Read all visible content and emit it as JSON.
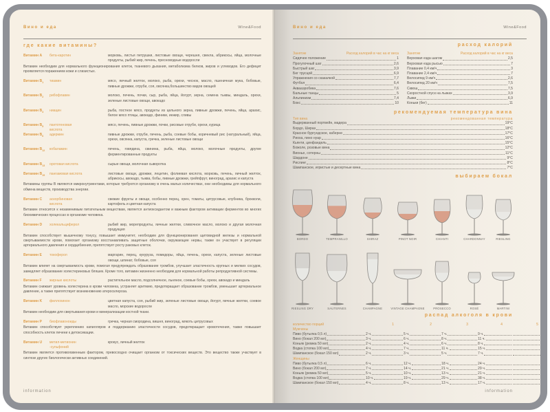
{
  "header": {
    "title_ru": "Вино и еда",
    "title_en": "Wine&Food"
  },
  "footer": {
    "left": "information",
    "right": "information"
  },
  "vitamins": {
    "title": "где какие витамины?",
    "items": [
      {
        "name": "Витамин",
        "letter": "A",
        "sub": "",
        "compound": "бета-каротин",
        "foods": "морковь, листья петрушки, листовые овощи, черешня, свекла, абрикосы, яйца, молочные продукты, рыбий жир, печень, пресноводные водоросли",
        "desc": "Витамин необходим для нормального функционирования клеток, тканевого дыхания, метаболизма белков, жиров и углеводов. Его дефицит проявляется поражением кожи и слизистых."
      },
      {
        "name": "Витамин",
        "letter": "B",
        "sub": "1",
        "compound": "тиамин",
        "foods": "мясо, яичный желток, молоко, рыба, орехи, чеснок, масло, пшеничная мука, бобовые, пивные дрожжи, отруби, соя, овсянка,большинство видов овощей",
        "desc": ""
      },
      {
        "name": "Витамин",
        "letter": "B",
        "sub": "2",
        "compound": "рибофлавин",
        "foods": "молоко, печень, почки, сыр, рыба, яйца, йогурт, зерна, семена тыквы, миндаль, орехи, зеленые листовые овощи, авокадо",
        "desc": ""
      },
      {
        "name": "Витамин",
        "letter": "B",
        "sub": "3",
        "compound": "ниацин",
        "foods": "рыба, постное мясо, продукты из цельного зерна, пивные дрожжи, печень, яйца, арахис, белое мясо птицы, авокадо, финики, инжир, сливы",
        "desc": ""
      },
      {
        "name": "Витамин",
        "letter": "B",
        "sub": "5",
        "compound": "пантотеновая кислота",
        "foods": "мясо, печень, пивные дрожжи, почки, рисовые отруби, орехи, курица",
        "desc": ""
      },
      {
        "name": "Витамин",
        "letter": "B",
        "sub": "6",
        "compound": "адермин",
        "foods": "пивные дрожжи, отруби, печень, рыба, соевые бобы, коричневый рис (натуральный), яйца, орехи, овсянка, капуста, гречка, зеленые листовые овощи",
        "desc": ""
      },
      {
        "name": "Витамин",
        "letter": "B",
        "sub": "12",
        "compound": "кобаламин",
        "foods": "печень, говядина, свинина, рыба, яйца, молоко, молочные продукты, другие ферментированные продукты",
        "desc": ""
      },
      {
        "name": "Витамин",
        "letter": "B",
        "sub": "13",
        "compound": "оротовая кислота",
        "foods": "сырые овощи, молочная сыворотка",
        "desc": ""
      },
      {
        "name": "Витамин",
        "letter": "B",
        "sub": "15",
        "compound": "пангамовая кислота",
        "foods": "листовые овощи, дрожжи, лецитин, фолиевая кислота, морковь, печень, яичный желток, абрикосы, авокадо, тыква, бобы, пивные дрожжи, грейпфрут, виноград, арахис и капуста",
        "desc": "Витамины группы B являются микронутриентами, которые требуются организму в очень малых количествах, они необходимы для нормального обмена веществ, производства энергии."
      },
      {
        "name": "Витамин",
        "letter": "C",
        "sub": "",
        "compound": "аскорбиновая кислота",
        "foods": "свежие фрукты и овощи, особенно перец, хрен, томаты, цитрусовые, клубника, брокколи, картофель и цветная капуста",
        "desc": "Витамин относится к незаменимым питательным веществам, является антиоксидантом и важным фактором активации ферментов во многих биохимических процессах в организме человека."
      },
      {
        "name": "Витамин",
        "letter": "D",
        "sub": "",
        "compound": "холекальциферол",
        "foods": "рыбий жир, морепродукты, яичные желтки, сливочное масло, молоко и другая молочная продукция",
        "desc": "Витамин способствует мышечному тонусу, повышает иммунитет, необходим для функционирования щитовидной железы и нормальной свертываемости крови, помогает организму восстанавливать защитные оболочки, окружающие нервы, также он участвует в регуляции артериального давления и сердцебиения, препятствует росту раковых клеток."
      },
      {
        "name": "Витамин",
        "letter": "E",
        "sub": "",
        "compound": "токоферол",
        "foods": "маргарин, перец, кукуруза, помидоры, яйца, печень, орехи, капуста, зеленые листовые овощи, шпинат, бобовые, соя",
        "desc": "Витамин влияет на свертываемость крови, помогая предупреждать образование тромбов, улучшает эластичность крупных и мелких сосудов, замедляет образование холестериновых бляшек. Кроме того, витамин жизненно необходим для нормальной работы репродуктивной системы."
      },
      {
        "name": "Витамин",
        "letter": "F",
        "sub": "",
        "compound": "жирные кислоты",
        "foods": "растительное масло, подсолнечное, льняное, соевые бобы, орехи, авокадо и миндаль",
        "desc": "Витамин снижает уровень холестерина в крови человека, устраняет аритмию, предотвращает образование тромбов, уменьшает артериальное давление, а также препятствует возникновению атеросклероза."
      },
      {
        "name": "Витамин",
        "letter": "K",
        "sub": "",
        "compound": "филлохинон",
        "foods": "цветная капуста, соя, рыбий жир, зеленые листовые овощи, йогурт, яичные желтки, соевое масло, морские водоросли",
        "desc": "Витамин необходим для свертывания крови и минерализации костной ткани."
      },
      {
        "name": "Витамин",
        "letter": "P",
        "sub": "",
        "compound": "биофлавоноиды",
        "foods": "гречка, черная смородина, вишня, виноград, мякоть цитрусовых",
        "desc": "Витамин способствует укреплению капилляров и поддержанию эластичности сосудов, предотвращает кровотечения, также повышает способность клеток печени к детоксикации."
      },
      {
        "name": "Витамин",
        "letter": "U",
        "sub": "",
        "compound": "метил-метионин -сульфоний",
        "foods": "крокус, яичный желток",
        "desc": "Витамин является противоязвенным фактором, превосходно очищает организм от токсических веществ. Это вещество также участвует в синтезе других биологически активных соединений."
      }
    ]
  },
  "calories": {
    "title": "расход калорий",
    "col_activity": "Занятие",
    "col_value": "Расход калорий в час на кг веса",
    "left": [
      [
        "Сидячее положение",
        "1"
      ],
      [
        "Прогулочный шаг",
        "2,6"
      ],
      [
        "Быстрый шаг",
        "3,9"
      ],
      [
        "Бег трусцой",
        "6,9"
      ],
      [
        "Упражнения со скакалкой",
        "7,7"
      ],
      [
        "Футбол",
        "6,4"
      ],
      [
        "Аквааэробика",
        "7,6"
      ],
      [
        "Бальные танцы",
        "5"
      ],
      [
        "Альпинизм",
        "7,4"
      ],
      [
        "Бокс",
        "10"
      ]
    ],
    "right": [
      [
        "Верховая езда шагом",
        "2,5"
      ],
      [
        "Верховая езда рысью",
        "7"
      ],
      [
        "Плавание 0,4 км/ч",
        "3"
      ],
      [
        "Плавание 2,4 км/ч",
        "7"
      ],
      [
        "Велосипед 9 км/ч",
        "2,6"
      ],
      [
        "Велосипед 20 км/ч",
        "7,5"
      ],
      [
        "Сквош",
        "7,5"
      ],
      [
        "Скоростной спуск на лыжах",
        "3,9"
      ],
      [
        "Лыжи",
        "6,9"
      ],
      [
        "Коньки (бег)",
        "11"
      ]
    ]
  },
  "temperature": {
    "title": "рекомендуемая температура вина",
    "col_type": "Тип вина",
    "col_temp": "рекомендованная температура",
    "rows": [
      [
        "Выдержанный портвейн, мадера",
        "19°C"
      ],
      [
        "Бордо, Шираз",
        "18°C"
      ],
      [
        "Красное бургундское, каберне",
        "17°C"
      ],
      [
        "Риоха, пино нуар",
        "16°C"
      ],
      [
        "Кьянти, цинфандель",
        "15°C"
      ],
      [
        "Божоле, розовые вина",
        "12°C"
      ],
      [
        "Вионье, сотерны",
        "11°C"
      ],
      [
        "Шардоне",
        "9°C"
      ],
      [
        "Рислинг",
        "8°C"
      ],
      [
        "Шампанское, игристые и десертные вина",
        "7°C"
      ]
    ]
  },
  "glasses": {
    "title": "выбираем бокал",
    "red_wine_color": "#d9a08a",
    "row1": [
      {
        "label": "BORDO",
        "wine": "red"
      },
      {
        "label": "TEMPRANILLO",
        "wine": "red"
      },
      {
        "label": "SHIRAZ",
        "wine": "red"
      },
      {
        "label": "PINOT NOIR",
        "wine": "red"
      },
      {
        "label": "CHIANTI",
        "wine": "red"
      },
      {
        "label": "CHARDONNAY",
        "wine": "white"
      },
      {
        "label": "RIESLING",
        "wine": "white"
      }
    ],
    "row2": [
      {
        "label": "RIESLING DRY",
        "wine": "white"
      },
      {
        "label": "SAUTERNES",
        "wine": "white"
      },
      {
        "label": "CHAMPAGNE",
        "wine": "white"
      },
      {
        "label": "VINTAGE CHAMPAGNE",
        "wine": "white"
      },
      {
        "label": "PROSECCO",
        "wine": "white"
      },
      {
        "label": "ROSÉ",
        "wine": "white"
      },
      {
        "label": "MARTINI",
        "wine": "white"
      }
    ]
  },
  "alcohol": {
    "title": "распад алкоголя в крови",
    "col_label": "количество порций",
    "columns": [
      "1",
      "2",
      "3",
      "4",
      "5"
    ],
    "groups": [
      {
        "label": "Мужчины",
        "rows": [
          [
            "Пиво (бутылка 0,5 л)",
            "2 ч.",
            "5 ч.",
            "7 ч.",
            "9 ч.",
            "12 ч."
          ],
          [
            "Вино (бокал 200 мл)",
            "3 ч.",
            "6 ч.",
            "8 ч.",
            "11 ч.",
            "14 ч."
          ],
          [
            "Коньяк (рюмка 50 мл)",
            "2 ч.",
            "4 ч.",
            "6 ч.",
            "8 ч.",
            "10 ч."
          ],
          [
            "Водка (стопка 100 мл)",
            "4 ч.",
            "7 ч.",
            "11 ч.",
            "15 ч.",
            "19 ч."
          ],
          [
            "Шампанское (бокал 150 мл)",
            "2 ч.",
            "3 ч.",
            "5 ч.",
            "7 ч.",
            "8 ч."
          ]
        ]
      },
      {
        "label": "Женщины",
        "rows": [
          [
            "Пиво (бутылка 0,5 л)",
            "6 ч.",
            "12 ч.",
            "18 ч.",
            "24 ч.",
            "30 ч."
          ],
          [
            "Вино (бокал 200 мл)",
            "7 ч.",
            "14 ч.",
            "21 ч.",
            "29 ч.",
            "36 ч."
          ],
          [
            "Коньяк (рюмка 50 мл)",
            "5 ч.",
            "10 ч.",
            "13 ч.",
            "21 ч.",
            "26 ч."
          ],
          [
            "Водка (стопка 100 мл)",
            "10 ч.",
            "19 ч.",
            "29 ч.",
            "38 ч.",
            "48 ч."
          ],
          [
            "Шампанское (бокал 150 мл)",
            "4 ч.",
            "8 ч.",
            "13 ч.",
            "17 ч.",
            "22 ч."
          ]
        ]
      }
    ]
  }
}
